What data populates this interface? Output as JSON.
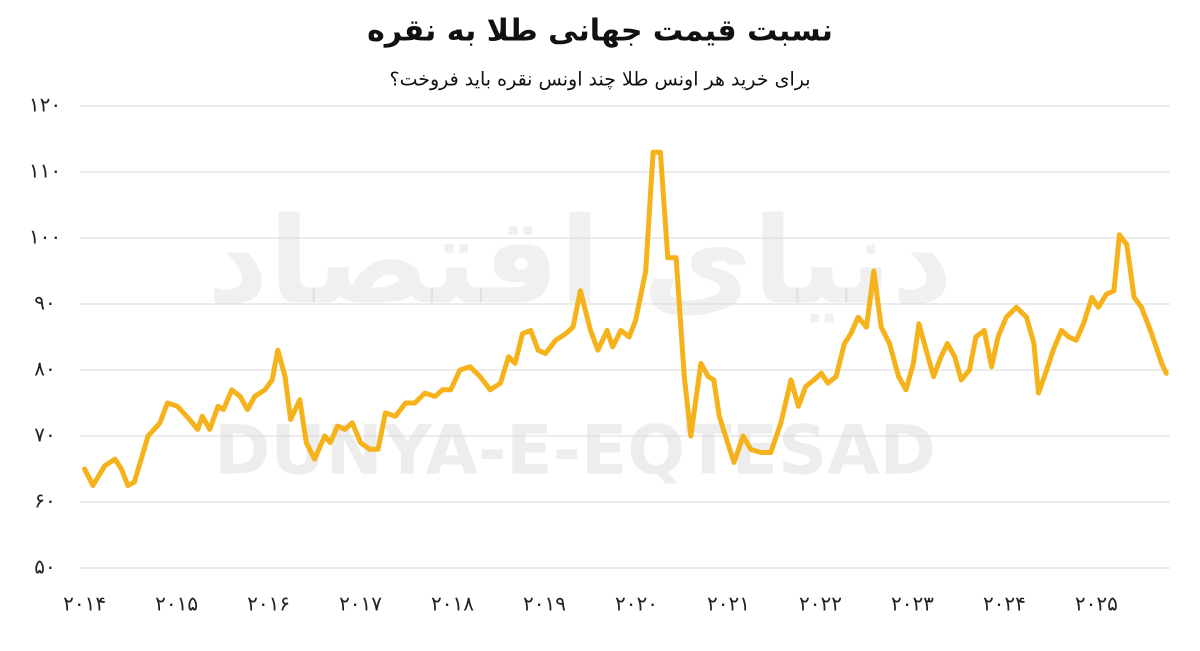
{
  "chart_data": {
    "type": "line",
    "title": "نسبت قیمت جهانی طلا به نقره",
    "subtitle": "برای خرید هر اونس طلا چند اونس نقره باید فروخت؟",
    "watermark": [
      "دنیای اقتصاد",
      "DUNYA-E-EQTESAD"
    ],
    "color": "#f5b21b",
    "grid": true,
    "xlim": [
      2013.95,
      2025.8
    ],
    "ylim": [
      50,
      120
    ],
    "yticks": [
      {
        "value": 50,
        "label": "۵۰"
      },
      {
        "value": 60,
        "label": "۶۰"
      },
      {
        "value": 70,
        "label": "۷۰"
      },
      {
        "value": 80,
        "label": "۸۰"
      },
      {
        "value": 90,
        "label": "۹۰"
      },
      {
        "value": 100,
        "label": "۱۰۰"
      },
      {
        "value": 110,
        "label": "۱۱۰"
      },
      {
        "value": 120,
        "label": "۱۲۰"
      }
    ],
    "xticks": [
      {
        "value": 2014,
        "label": "۲۰۱۴"
      },
      {
        "value": 2015,
        "label": "۲۰۱۵"
      },
      {
        "value": 2016,
        "label": "۲۰۱۶"
      },
      {
        "value": 2017,
        "label": "۲۰۱۷"
      },
      {
        "value": 2018,
        "label": "۲۰۱۸"
      },
      {
        "value": 2019,
        "label": "۲۰۱۹"
      },
      {
        "value": 2020,
        "label": "۲۰۲۰"
      },
      {
        "value": 2021,
        "label": "۲۰۲۱"
      },
      {
        "value": 2022,
        "label": "۲۰۲۲"
      },
      {
        "value": 2023,
        "label": "۲۰۲۳"
      },
      {
        "value": 2024,
        "label": "۲۰۲۴"
      },
      {
        "value": 2025,
        "label": "۲۰۲۵"
      }
    ],
    "x": [
      2014.0,
      2014.09,
      2014.22,
      2014.33,
      2014.4,
      2014.47,
      2014.54,
      2014.69,
      2014.82,
      2014.9,
      2015.01,
      2015.14,
      2015.23,
      2015.28,
      2015.36,
      2015.45,
      2015.51,
      2015.6,
      2015.69,
      2015.77,
      2015.85,
      2015.96,
      2016.04,
      2016.1,
      2016.18,
      2016.24,
      2016.34,
      2016.41,
      2016.5,
      2016.61,
      2016.67,
      2016.75,
      2016.83,
      2016.91,
      2017.0,
      2017.1,
      2017.19,
      2017.27,
      2017.38,
      2017.49,
      2017.59,
      2017.7,
      2017.81,
      2017.89,
      2017.98,
      2018.08,
      2018.19,
      2018.3,
      2018.41,
      2018.52,
      2018.61,
      2018.68,
      2018.76,
      2018.85,
      2018.93,
      2019.01,
      2019.12,
      2019.23,
      2019.31,
      2019.39,
      2019.5,
      2019.58,
      2019.68,
      2019.74,
      2019.83,
      2019.92,
      2019.99,
      2020.1,
      2020.18,
      2020.26,
      2020.34,
      2020.43,
      2020.52,
      2020.59,
      2020.7,
      2020.78,
      2020.84,
      2020.9,
      2020.99,
      2021.06,
      2021.16,
      2021.24,
      2021.35,
      2021.46,
      2021.57,
      2021.68,
      2021.76,
      2021.84,
      2021.93,
      2022.01,
      2022.08,
      2022.17,
      2022.26,
      2022.33,
      2022.41,
      2022.5,
      2022.58,
      2022.66,
      2022.75,
      2022.85,
      2022.93,
      2023.01,
      2023.07,
      2023.15,
      2023.23,
      2023.31,
      2023.38,
      2023.46,
      2023.53,
      2023.62,
      2023.69,
      2023.78,
      2023.86,
      2023.93,
      2024.02,
      2024.13,
      2024.24,
      2024.32,
      2024.37,
      2024.46,
      2024.53,
      2024.62,
      2024.7,
      2024.78,
      2024.86,
      2024.95,
      2025.02,
      2025.11,
      2025.19,
      2025.25,
      2025.33,
      2025.41,
      2025.49,
      2025.6,
      2025.71,
      2025.76
    ],
    "values": [
      65,
      62.5,
      65.5,
      66.5,
      65,
      62.5,
      63,
      70,
      72,
      75,
      74.5,
      72.5,
      71,
      73,
      71,
      74.5,
      74,
      77,
      76,
      74,
      76,
      77,
      78.5,
      83,
      79,
      72.5,
      75.5,
      69,
      66.5,
      70,
      69,
      71.5,
      71,
      72,
      69,
      68,
      68,
      73.5,
      73,
      75,
      75,
      76.5,
      76,
      77,
      77,
      80,
      80.5,
      79,
      77,
      78,
      82,
      81,
      85.5,
      86,
      83,
      82.5,
      84.5,
      85.5,
      86.5,
      92,
      86,
      83,
      86,
      83.5,
      86,
      85,
      87.5,
      95,
      113,
      113,
      97,
      97,
      79,
      70,
      81,
      79,
      78.5,
      73,
      69,
      66,
      70,
      68,
      67.5,
      67.5,
      72,
      78.5,
      74.5,
      77.5,
      78.5,
      79.5,
      78,
      79,
      84,
      85.5,
      88,
      86.5,
      95,
      86.5,
      84,
      79,
      77,
      81,
      87,
      83,
      79,
      82,
      84,
      82,
      78.5,
      80,
      85,
      86,
      80.5,
      85,
      88,
      89.5,
      88,
      84,
      76.5,
      80,
      83,
      86,
      85,
      84.5,
      87,
      91,
      89.5,
      91.5,
      92,
      100.5,
      99,
      91,
      89.5,
      85.5,
      81,
      79.5
    ]
  }
}
